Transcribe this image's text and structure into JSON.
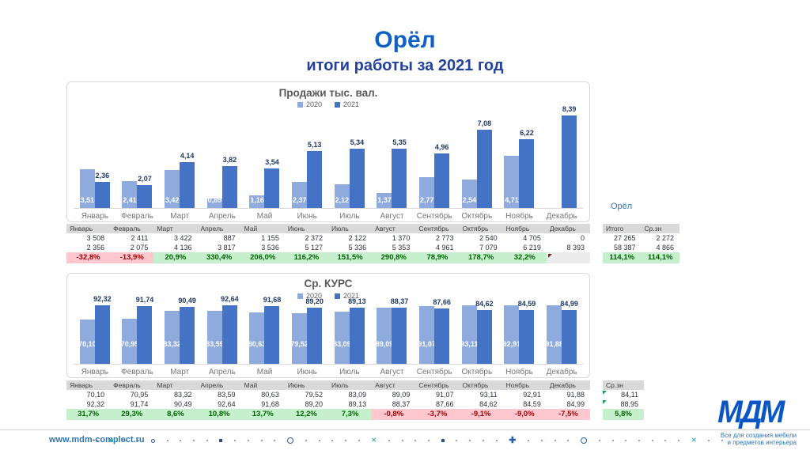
{
  "slide": {
    "title": "Орёл",
    "subtitle": "итоги работы за 2021 год",
    "region_label": "Орёл"
  },
  "colors": {
    "series_2020": "#8FAADC",
    "series_2021": "#4472C4",
    "pct_good_bg": "#C6EFCE",
    "pct_good_text": "#006100",
    "pct_bad_bg": "#FFC7CE",
    "pct_bad_text": "#9C0006",
    "header_bg": "#D9D9D9",
    "brand_blue": "#0A56C5"
  },
  "chart_data": [
    {
      "type": "bar",
      "title": "Продажи тыс. вал.",
      "categories": [
        "Январь",
        "Февраль",
        "Март",
        "Апрель",
        "Май",
        "Июнь",
        "Июль",
        "Август",
        "Сентябрь",
        "Октябрь",
        "Ноябрь",
        "Декабрь"
      ],
      "series": [
        {
          "name": "2020",
          "values": [
            3.51,
            2.41,
            3.42,
            0.89,
            1.16,
            2.37,
            2.12,
            1.37,
            2.77,
            2.54,
            4.71,
            0
          ],
          "labels": [
            "3,51",
            "2,41",
            "3,42",
            "0,89",
            "1,16",
            "2,37",
            "2,12",
            "1,37",
            "2,77",
            "2,54",
            "4,71",
            ""
          ]
        },
        {
          "name": "2021",
          "values": [
            2.36,
            2.07,
            4.14,
            3.82,
            3.54,
            5.13,
            5.34,
            5.35,
            4.96,
            7.08,
            6.22,
            8.39
          ],
          "labels": [
            "2,36",
            "2,07",
            "4,14",
            "3,82",
            "3,54",
            "5,13",
            "5,34",
            "5,35",
            "4,96",
            "7,08",
            "6,22",
            "8,39"
          ]
        }
      ],
      "ylim": [
        0,
        9
      ],
      "grid": false,
      "legend_position": "top"
    },
    {
      "type": "bar",
      "title": "Ср. КУРС",
      "categories": [
        "Январь",
        "Февраль",
        "Март",
        "Апрель",
        "Май",
        "Июнь",
        "Июль",
        "Август",
        "Сентябрь",
        "Октябрь",
        "Ноябрь",
        "Декабрь"
      ],
      "series": [
        {
          "name": "2020",
          "values": [
            70.1,
            70.95,
            83.32,
            83.59,
            80.63,
            79.52,
            83.09,
            89.09,
            91.07,
            93.11,
            92.91,
            91.88
          ],
          "labels": [
            "70,10",
            "70,95",
            "83,32",
            "83,59",
            "80,63",
            "79,52",
            "83,09",
            "89,09",
            "91,07",
            "93,11",
            "92,91",
            "91,88"
          ]
        },
        {
          "name": "2021",
          "values": [
            92.32,
            91.74,
            90.49,
            92.64,
            91.68,
            89.2,
            89.13,
            88.37,
            87.66,
            84.62,
            84.59,
            84.99
          ],
          "labels": [
            "92,32",
            "91,74",
            "90,49",
            "92,64",
            "91,68",
            "89,20",
            "89,13",
            "88,37",
            "87,66",
            "84,62",
            "84,59",
            "84,99"
          ]
        }
      ],
      "ylim": [
        0,
        100
      ],
      "grid": false,
      "legend_position": "top"
    }
  ],
  "tables": {
    "sales": {
      "months": [
        "Январь",
        "Февраль",
        "Март",
        "Апрель",
        "Май",
        "Июнь",
        "Июль",
        "Август",
        "Сентябрь",
        "Октябрь",
        "Ноябрь",
        "Декабрь"
      ],
      "row_2020": [
        "3 508",
        "2 411",
        "3 422",
        "887",
        "1 155",
        "2 372",
        "2 122",
        "1 370",
        "2 773",
        "2 540",
        "4 705",
        "0"
      ],
      "row_2021": [
        "2 356",
        "2 075",
        "4 136",
        "3 817",
        "3 536",
        "5 127",
        "5 336",
        "5 353",
        "4 961",
        "7 079",
        "6 219",
        "8 393"
      ],
      "pct": [
        "-32,8%",
        "-13,9%",
        "20,9%",
        "330,4%",
        "206,0%",
        "116,2%",
        "151,5%",
        "290,8%",
        "78,9%",
        "178,7%",
        "32,2%",
        ""
      ],
      "pct_styles": [
        "neg",
        "neg",
        "pos",
        "pos",
        "pos",
        "pos",
        "pos",
        "pos",
        "pos",
        "pos",
        "pos",
        "empty"
      ],
      "comment_flag_month_index": 11
    },
    "sales_totals": {
      "headers": [
        "Итого",
        "Ср.зн"
      ],
      "row_2020": [
        "27 265",
        "2 272"
      ],
      "row_2021": [
        "58 387",
        "4 866"
      ],
      "pct": [
        "114,1%",
        "114,1%"
      ],
      "pct_styles": [
        "pos",
        "pos"
      ]
    },
    "rate": {
      "months": [
        "Январь",
        "Февраль",
        "Март",
        "Апрель",
        "Май",
        "Июнь",
        "Июль",
        "Август",
        "Сентябрь",
        "Октябрь",
        "Ноябрь",
        "Декабрь"
      ],
      "row_2020": [
        "70,10",
        "70,95",
        "83,32",
        "83,59",
        "80,63",
        "79,52",
        "83,09",
        "89,09",
        "91,07",
        "93,11",
        "92,91",
        "91,88"
      ],
      "row_2021": [
        "92,32",
        "91,74",
        "90,49",
        "92,64",
        "91,68",
        "89,20",
        "89,13",
        "88,37",
        "87,66",
        "84,62",
        "84,59",
        "84,99"
      ],
      "pct": [
        "31,7%",
        "29,3%",
        "8,6%",
        "10,8%",
        "13,7%",
        "12,2%",
        "7,3%",
        "-0,8%",
        "-3,7%",
        "-9,1%",
        "-9,0%",
        "-7,5%"
      ],
      "pct_styles": [
        "pos",
        "pos",
        "pos",
        "pos",
        "pos",
        "pos",
        "pos",
        "neg",
        "neg",
        "neg",
        "neg",
        "neg"
      ]
    },
    "rate_avg": {
      "header": "Ср.зн",
      "row_2020": "84,11",
      "row_2021": "88,95",
      "pct": "5,8%",
      "pct_style": "pos",
      "error_markers": [
        true,
        true
      ]
    }
  },
  "footer": {
    "url": "www.mdm-complect.ru",
    "logo": "МДМ",
    "tagline_line1": "Все для создания мебели",
    "tagline_line2": "и предметов интерьера",
    "dots": [
      "dot",
      "sq-teal",
      "dot",
      "dot",
      "ring",
      "dot",
      "dot",
      "dot",
      "dot",
      "sq-navy",
      "dot",
      "dot",
      "dot",
      "dot",
      "ring-lg",
      "dot",
      "dot",
      "dot",
      "dot",
      "dot",
      "x",
      "dot",
      "dot",
      "dot",
      "dot",
      "sq-navy",
      "dot",
      "dot",
      "dot",
      "dot",
      "plus",
      "dot",
      "dot",
      "dot",
      "dot",
      "ring-lg",
      "dot",
      "dot",
      "dot",
      "dot",
      "dot",
      "dot",
      "dot",
      "x",
      "dot",
      "dot"
    ]
  }
}
